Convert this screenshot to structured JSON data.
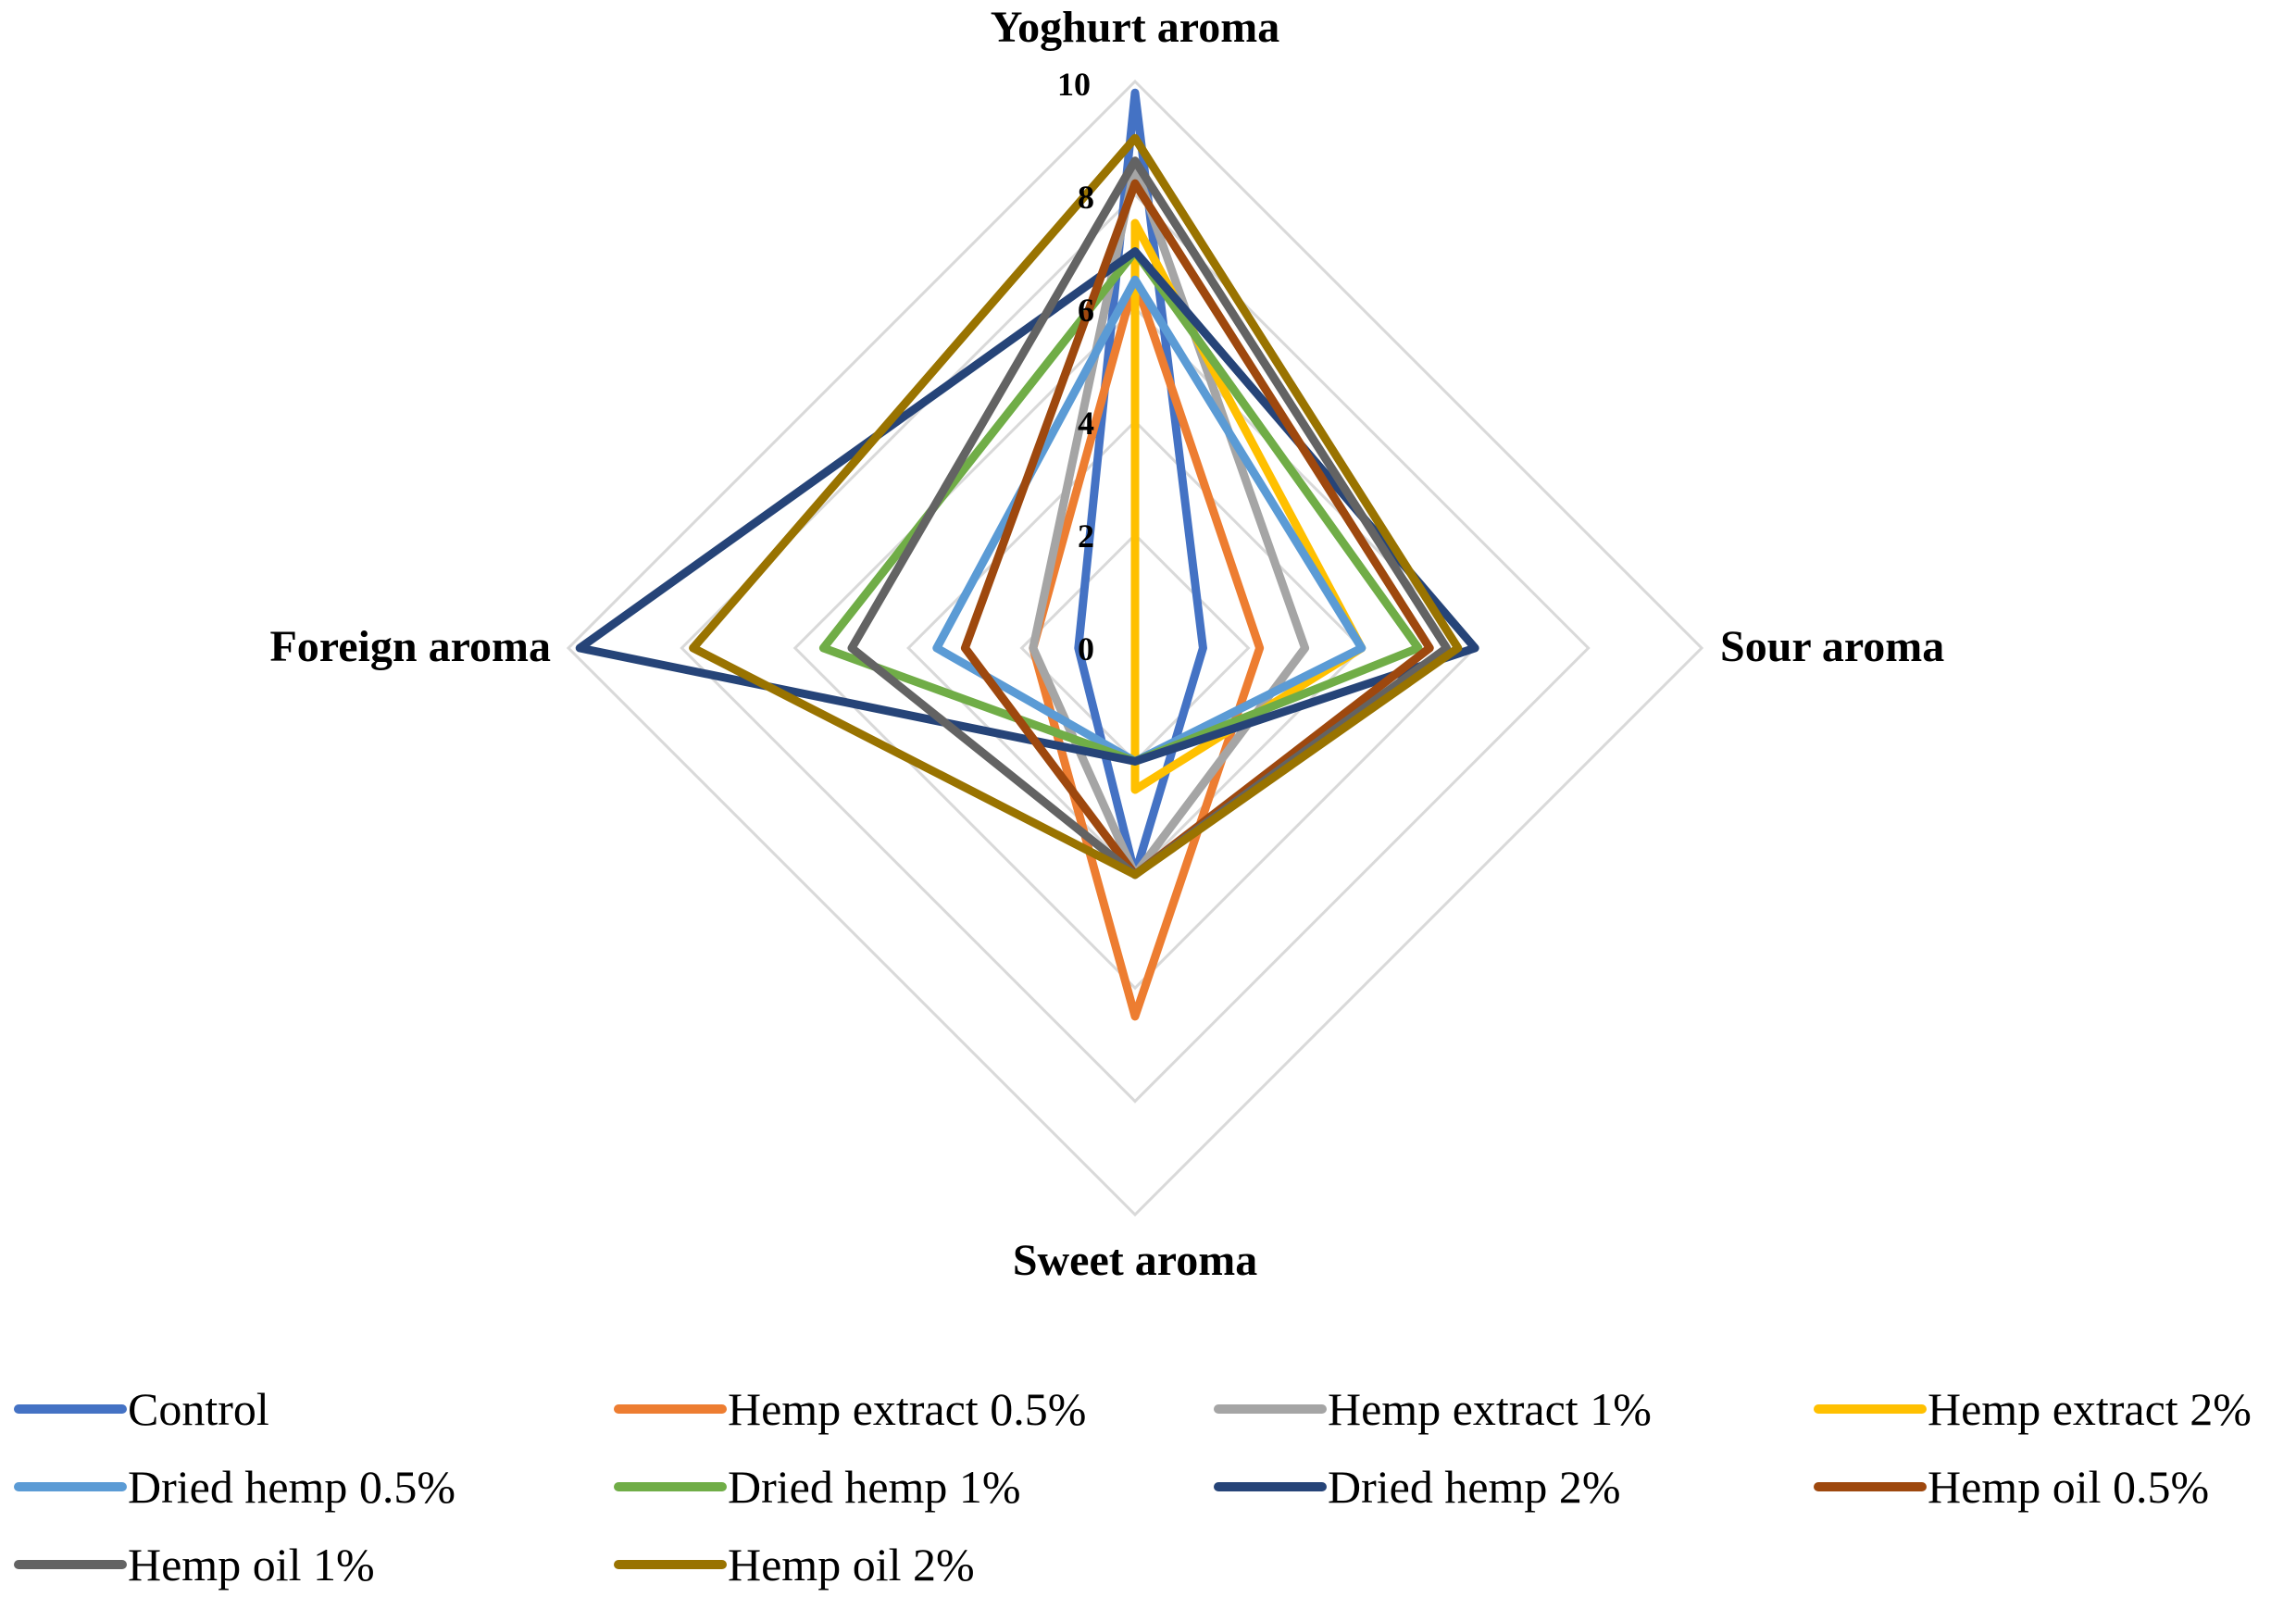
{
  "chart_data": {
    "type": "radar",
    "axes": [
      "Yoghurt aroma",
      "Sour aroma",
      "Sweet aroma",
      "Foreign aroma"
    ],
    "rlim": [
      0,
      10
    ],
    "ticks": [
      "0",
      "2",
      "4",
      "6",
      "8",
      "10"
    ],
    "tick_values": [
      0,
      2,
      4,
      6,
      8,
      10
    ],
    "legend_position": "bottom",
    "series": [
      {
        "name": "Control",
        "color": "#4472C4",
        "values": [
          9.8,
          1.2,
          4.0,
          1.0
        ]
      },
      {
        "name": "Hemp extract 0.5%",
        "color": "#ED7D31",
        "values": [
          6.5,
          2.2,
          6.5,
          1.8
        ]
      },
      {
        "name": "Hemp extract 1%",
        "color": "#A5A5A5",
        "values": [
          8.5,
          3.0,
          4.0,
          1.8
        ]
      },
      {
        "name": "Hemp extract 2%",
        "color": "#FFC000",
        "values": [
          7.5,
          4.0,
          2.5,
          0.0
        ]
      },
      {
        "name": "Dried hemp 0.5%",
        "color": "#5B9BD5",
        "values": [
          6.5,
          4.0,
          2.0,
          3.5
        ]
      },
      {
        "name": "Dried hemp 1%",
        "color": "#70AD47",
        "values": [
          7.0,
          5.0,
          2.0,
          5.5
        ]
      },
      {
        "name": "Dried hemp 2%",
        "color": "#264478",
        "values": [
          7.0,
          6.0,
          2.0,
          9.8
        ]
      },
      {
        "name": "Hemp oil 0.5%",
        "color": "#9E480E",
        "values": [
          8.2,
          5.2,
          4.0,
          3.0
        ]
      },
      {
        "name": "Hemp oil  1%",
        "color": "#636363",
        "values": [
          8.6,
          5.5,
          4.0,
          5.0
        ]
      },
      {
        "name": "Hemp oil 2%",
        "color": "#997300",
        "values": [
          9.0,
          5.7,
          4.0,
          7.8
        ]
      }
    ]
  }
}
